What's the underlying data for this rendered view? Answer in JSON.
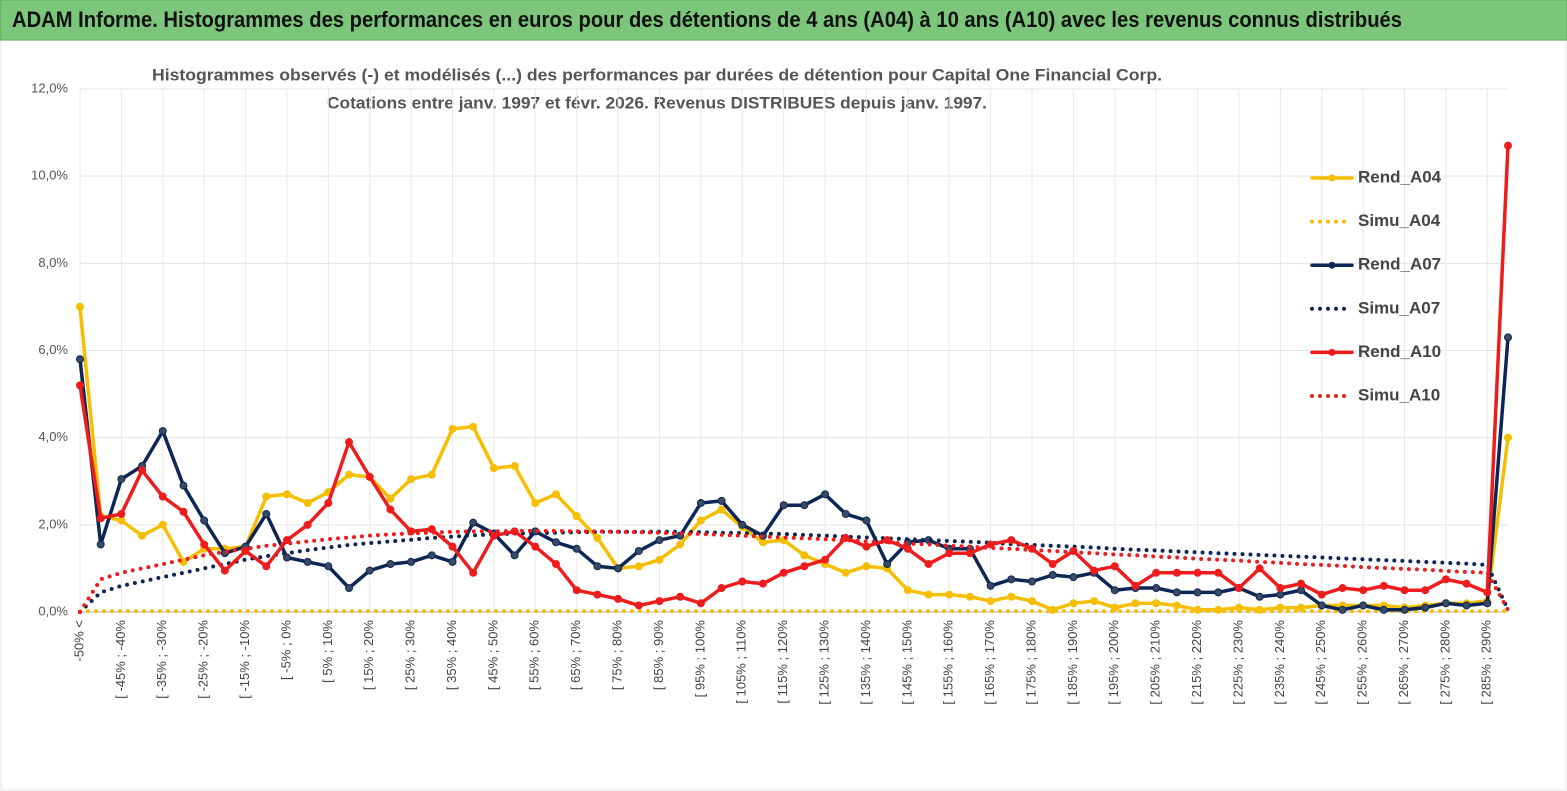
{
  "header": {
    "title": "ADAM Informe. Histogrammes des performances en euros pour des détentions de 4 ans (A04) à 10 ans (A10) avec les revenus connus distribués"
  },
  "chart_data": {
    "type": "line",
    "title": "Histogrammes observés (-) et modélisés (...) des performances par durées de détention pour Capital One Financial Corp.",
    "subtitle": "Cotations entre janv. 1997 et févr. 2026. Revenus DISTRIBUES depuis janv. 1997.",
    "categories": [
      "-50% <",
      null,
      "[ -45% ; -40%",
      null,
      "[ -35% ; -30%",
      null,
      "[ -25% ; -20%",
      null,
      "[ -15% ; -10%",
      null,
      "[ -5% ; 0%",
      null,
      "[ 5% ; 10%",
      null,
      "[ 15% ; 20%",
      null,
      "[ 25% ; 30%",
      null,
      "[ 35% ; 40%",
      null,
      "[ 45% ; 50%",
      null,
      "[ 55% ; 60%",
      null,
      "[ 65% ; 70%",
      null,
      "[ 75% ; 80%",
      null,
      "[ 85% ; 90%",
      null,
      "[ 95% ; 100%",
      null,
      "[ 105% ; 110%",
      null,
      "[ 115% ; 120%",
      null,
      "[ 125% ; 130%",
      null,
      "[ 135% ; 140%",
      null,
      "[ 145% ; 150%",
      null,
      "[ 155% ; 160%",
      null,
      "[ 165% ; 170%",
      null,
      "[ 175% ; 180%",
      null,
      "[ 185% ; 190%",
      null,
      "[ 195% ; 200%",
      null,
      "[ 205% ; 210%",
      null,
      "[ 215% ; 220%",
      null,
      "[ 225% ; 230%",
      null,
      "[ 235% ; 240%",
      null,
      "[ 245% ; 250%",
      null,
      "[ 255% ; 260%",
      null,
      "[ 265% ; 270%",
      null,
      "[ 275% ; 280%",
      null,
      "[ 285% ; 290%",
      null
    ],
    "ylim": [
      0,
      12
    ],
    "yticks": [
      {
        "value": 0,
        "label": "0,0%"
      },
      {
        "value": 2,
        "label": "2,0%"
      },
      {
        "value": 4,
        "label": "4,0%"
      },
      {
        "value": 6,
        "label": "6,0%"
      },
      {
        "value": 8,
        "label": "8,0%"
      },
      {
        "value": 10,
        "label": "10,0%"
      },
      {
        "value": 12,
        "label": "12,0%"
      }
    ],
    "grid": true,
    "legend": "right",
    "series": [
      {
        "name": "Rend_A04",
        "color": "#f5be00",
        "line_style": "solid",
        "values": [
          7.0,
          2.2,
          2.1,
          1.75,
          2.0,
          1.15,
          1.45,
          1.45,
          1.5,
          2.65,
          2.7,
          2.5,
          2.75,
          3.15,
          3.1,
          2.6,
          3.05,
          3.15,
          4.2,
          4.25,
          3.3,
          3.35,
          2.5,
          2.7,
          2.2,
          1.7,
          1.0,
          1.05,
          1.2,
          1.55,
          2.1,
          2.35,
          1.95,
          1.6,
          1.65,
          1.3,
          1.1,
          0.9,
          1.05,
          1.0,
          0.5,
          0.4,
          0.4,
          0.35,
          0.25,
          0.35,
          0.25,
          0.05,
          0.2,
          0.25,
          0.1,
          0.2,
          0.2,
          0.15,
          0.05,
          0.05,
          0.1,
          0.05,
          0.1,
          0.1,
          0.15,
          0.15,
          0.15,
          0.15,
          0.1,
          0.15,
          0.2,
          0.2,
          0.25,
          4.0
        ]
      },
      {
        "name": "Simu_A04",
        "color": "#f5be00",
        "line_style": "dotted",
        "values": [
          0.02,
          0.02,
          0.02,
          0.02,
          0.02,
          0.02,
          0.02,
          0.02,
          0.02,
          0.02,
          0.02,
          0.02,
          0.02,
          0.02,
          0.02,
          0.02,
          0.02,
          0.02,
          0.02,
          0.02,
          0.02,
          0.02,
          0.02,
          0.02,
          0.02,
          0.02,
          0.02,
          0.02,
          0.02,
          0.02,
          0.02,
          0.02,
          0.02,
          0.02,
          0.02,
          0.02,
          0.02,
          0.02,
          0.02,
          0.02,
          0.02,
          0.02,
          0.02,
          0.02,
          0.02,
          0.02,
          0.02,
          0.02,
          0.02,
          0.02,
          0.02,
          0.02,
          0.02,
          0.02,
          0.02,
          0.02,
          0.02,
          0.02,
          0.02,
          0.02,
          0.02,
          0.02,
          0.02,
          0.02,
          0.02,
          0.02,
          0.02,
          0.02,
          0.02,
          0.02
        ]
      },
      {
        "name": "Rend_A07",
        "color": "#0d2656",
        "line_style": "solid",
        "values": [
          5.8,
          1.55,
          3.05,
          3.35,
          4.15,
          2.9,
          2.1,
          1.35,
          1.5,
          2.25,
          1.25,
          1.15,
          1.05,
          0.55,
          0.95,
          1.1,
          1.15,
          1.3,
          1.15,
          2.05,
          1.8,
          1.3,
          1.85,
          1.6,
          1.45,
          1.05,
          1.0,
          1.4,
          1.65,
          1.75,
          2.5,
          2.55,
          2.0,
          1.75,
          2.45,
          2.45,
          2.7,
          2.25,
          2.1,
          1.1,
          1.6,
          1.65,
          1.45,
          1.45,
          0.6,
          0.75,
          0.7,
          0.85,
          0.8,
          0.9,
          0.5,
          0.55,
          0.55,
          0.45,
          0.45,
          0.45,
          0.55,
          0.35,
          0.4,
          0.5,
          0.15,
          0.05,
          0.15,
          0.05,
          0.05,
          0.1,
          0.2,
          0.15,
          0.2,
          6.3
        ]
      },
      {
        "name": "Simu_A07",
        "color": "#0d2656",
        "line_style": "dotted",
        "values": [
          0,
          0.45,
          0.6,
          0.7,
          0.8,
          0.9,
          1.0,
          1.1,
          1.2,
          1.28,
          1.35,
          1.42,
          1.48,
          1.54,
          1.58,
          1.62,
          1.66,
          1.7,
          1.73,
          1.76,
          1.78,
          1.8,
          1.81,
          1.82,
          1.83,
          1.84,
          1.84,
          1.84,
          1.84,
          1.84,
          1.83,
          1.82,
          1.81,
          1.8,
          1.79,
          1.77,
          1.75,
          1.73,
          1.71,
          1.69,
          1.67,
          1.65,
          1.63,
          1.61,
          1.59,
          1.56,
          1.54,
          1.52,
          1.5,
          1.48,
          1.45,
          1.43,
          1.41,
          1.39,
          1.37,
          1.35,
          1.33,
          1.31,
          1.29,
          1.27,
          1.25,
          1.23,
          1.21,
          1.19,
          1.17,
          1.15,
          1.13,
          1.11,
          1.08,
          0.05
        ]
      },
      {
        "name": "Rend_A10",
        "color": "#ee1c1c",
        "line_style": "solid",
        "values": [
          5.2,
          2.15,
          2.25,
          3.25,
          2.65,
          2.3,
          1.55,
          0.95,
          1.4,
          1.05,
          1.65,
          2.0,
          2.5,
          3.9,
          3.1,
          2.35,
          1.85,
          1.9,
          1.5,
          0.9,
          1.75,
          1.85,
          1.5,
          1.1,
          0.5,
          0.4,
          0.3,
          0.15,
          0.25,
          0.35,
          0.2,
          0.55,
          0.7,
          0.65,
          0.9,
          1.05,
          1.2,
          1.7,
          1.5,
          1.65,
          1.45,
          1.1,
          1.35,
          1.35,
          1.55,
          1.65,
          1.45,
          1.1,
          1.4,
          0.95,
          1.05,
          0.6,
          0.9,
          0.9,
          0.9,
          0.9,
          0.55,
          1.0,
          0.55,
          0.65,
          0.4,
          0.55,
          0.5,
          0.6,
          0.5,
          0.5,
          0.75,
          0.65,
          0.45,
          10.7
        ]
      },
      {
        "name": "Simu_A10",
        "color": "#ee1c1c",
        "line_style": "dotted",
        "values": [
          0,
          0.75,
          0.9,
          1.0,
          1.1,
          1.2,
          1.3,
          1.38,
          1.45,
          1.52,
          1.57,
          1.62,
          1.67,
          1.71,
          1.75,
          1.78,
          1.8,
          1.82,
          1.84,
          1.85,
          1.85,
          1.86,
          1.86,
          1.86,
          1.85,
          1.85,
          1.84,
          1.83,
          1.82,
          1.8,
          1.79,
          1.77,
          1.75,
          1.73,
          1.71,
          1.69,
          1.67,
          1.65,
          1.62,
          1.6,
          1.57,
          1.55,
          1.52,
          1.5,
          1.47,
          1.45,
          1.42,
          1.4,
          1.37,
          1.35,
          1.32,
          1.3,
          1.27,
          1.25,
          1.22,
          1.2,
          1.18,
          1.15,
          1.13,
          1.1,
          1.08,
          1.06,
          1.03,
          1.01,
          0.99,
          0.97,
          0.94,
          0.92,
          0.9,
          0.05
        ]
      }
    ]
  }
}
